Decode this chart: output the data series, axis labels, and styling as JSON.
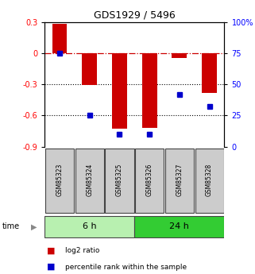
{
  "title": "GDS1929 / 5496",
  "samples": [
    "GSM85323",
    "GSM85324",
    "GSM85325",
    "GSM85326",
    "GSM85327",
    "GSM85328"
  ],
  "log2_ratio": [
    0.28,
    -0.31,
    -0.73,
    -0.72,
    -0.05,
    -0.38
  ],
  "percentile_rank": [
    75,
    25,
    10,
    10,
    42,
    32
  ],
  "groups": [
    {
      "label": "6 h",
      "samples": [
        0,
        1,
        2
      ],
      "color": "#b8f0b0"
    },
    {
      "label": "24 h",
      "samples": [
        3,
        4,
        5
      ],
      "color": "#33cc33"
    }
  ],
  "left_ylim": [
    -0.9,
    0.3
  ],
  "right_ylim": [
    0,
    100
  ],
  "left_yticks": [
    0.3,
    0.0,
    -0.3,
    -0.6,
    -0.9
  ],
  "right_yticks": [
    100,
    75,
    50,
    25,
    0
  ],
  "bar_color": "#cc0000",
  "dot_color": "#0000cc",
  "zero_line_color": "#cc0000",
  "grid_line_color": "#000000",
  "sample_box_color": "#cccccc",
  "legend_items": [
    "log2 ratio",
    "percentile rank within the sample"
  ],
  "legend_colors": [
    "#cc0000",
    "#0000cc"
  ]
}
